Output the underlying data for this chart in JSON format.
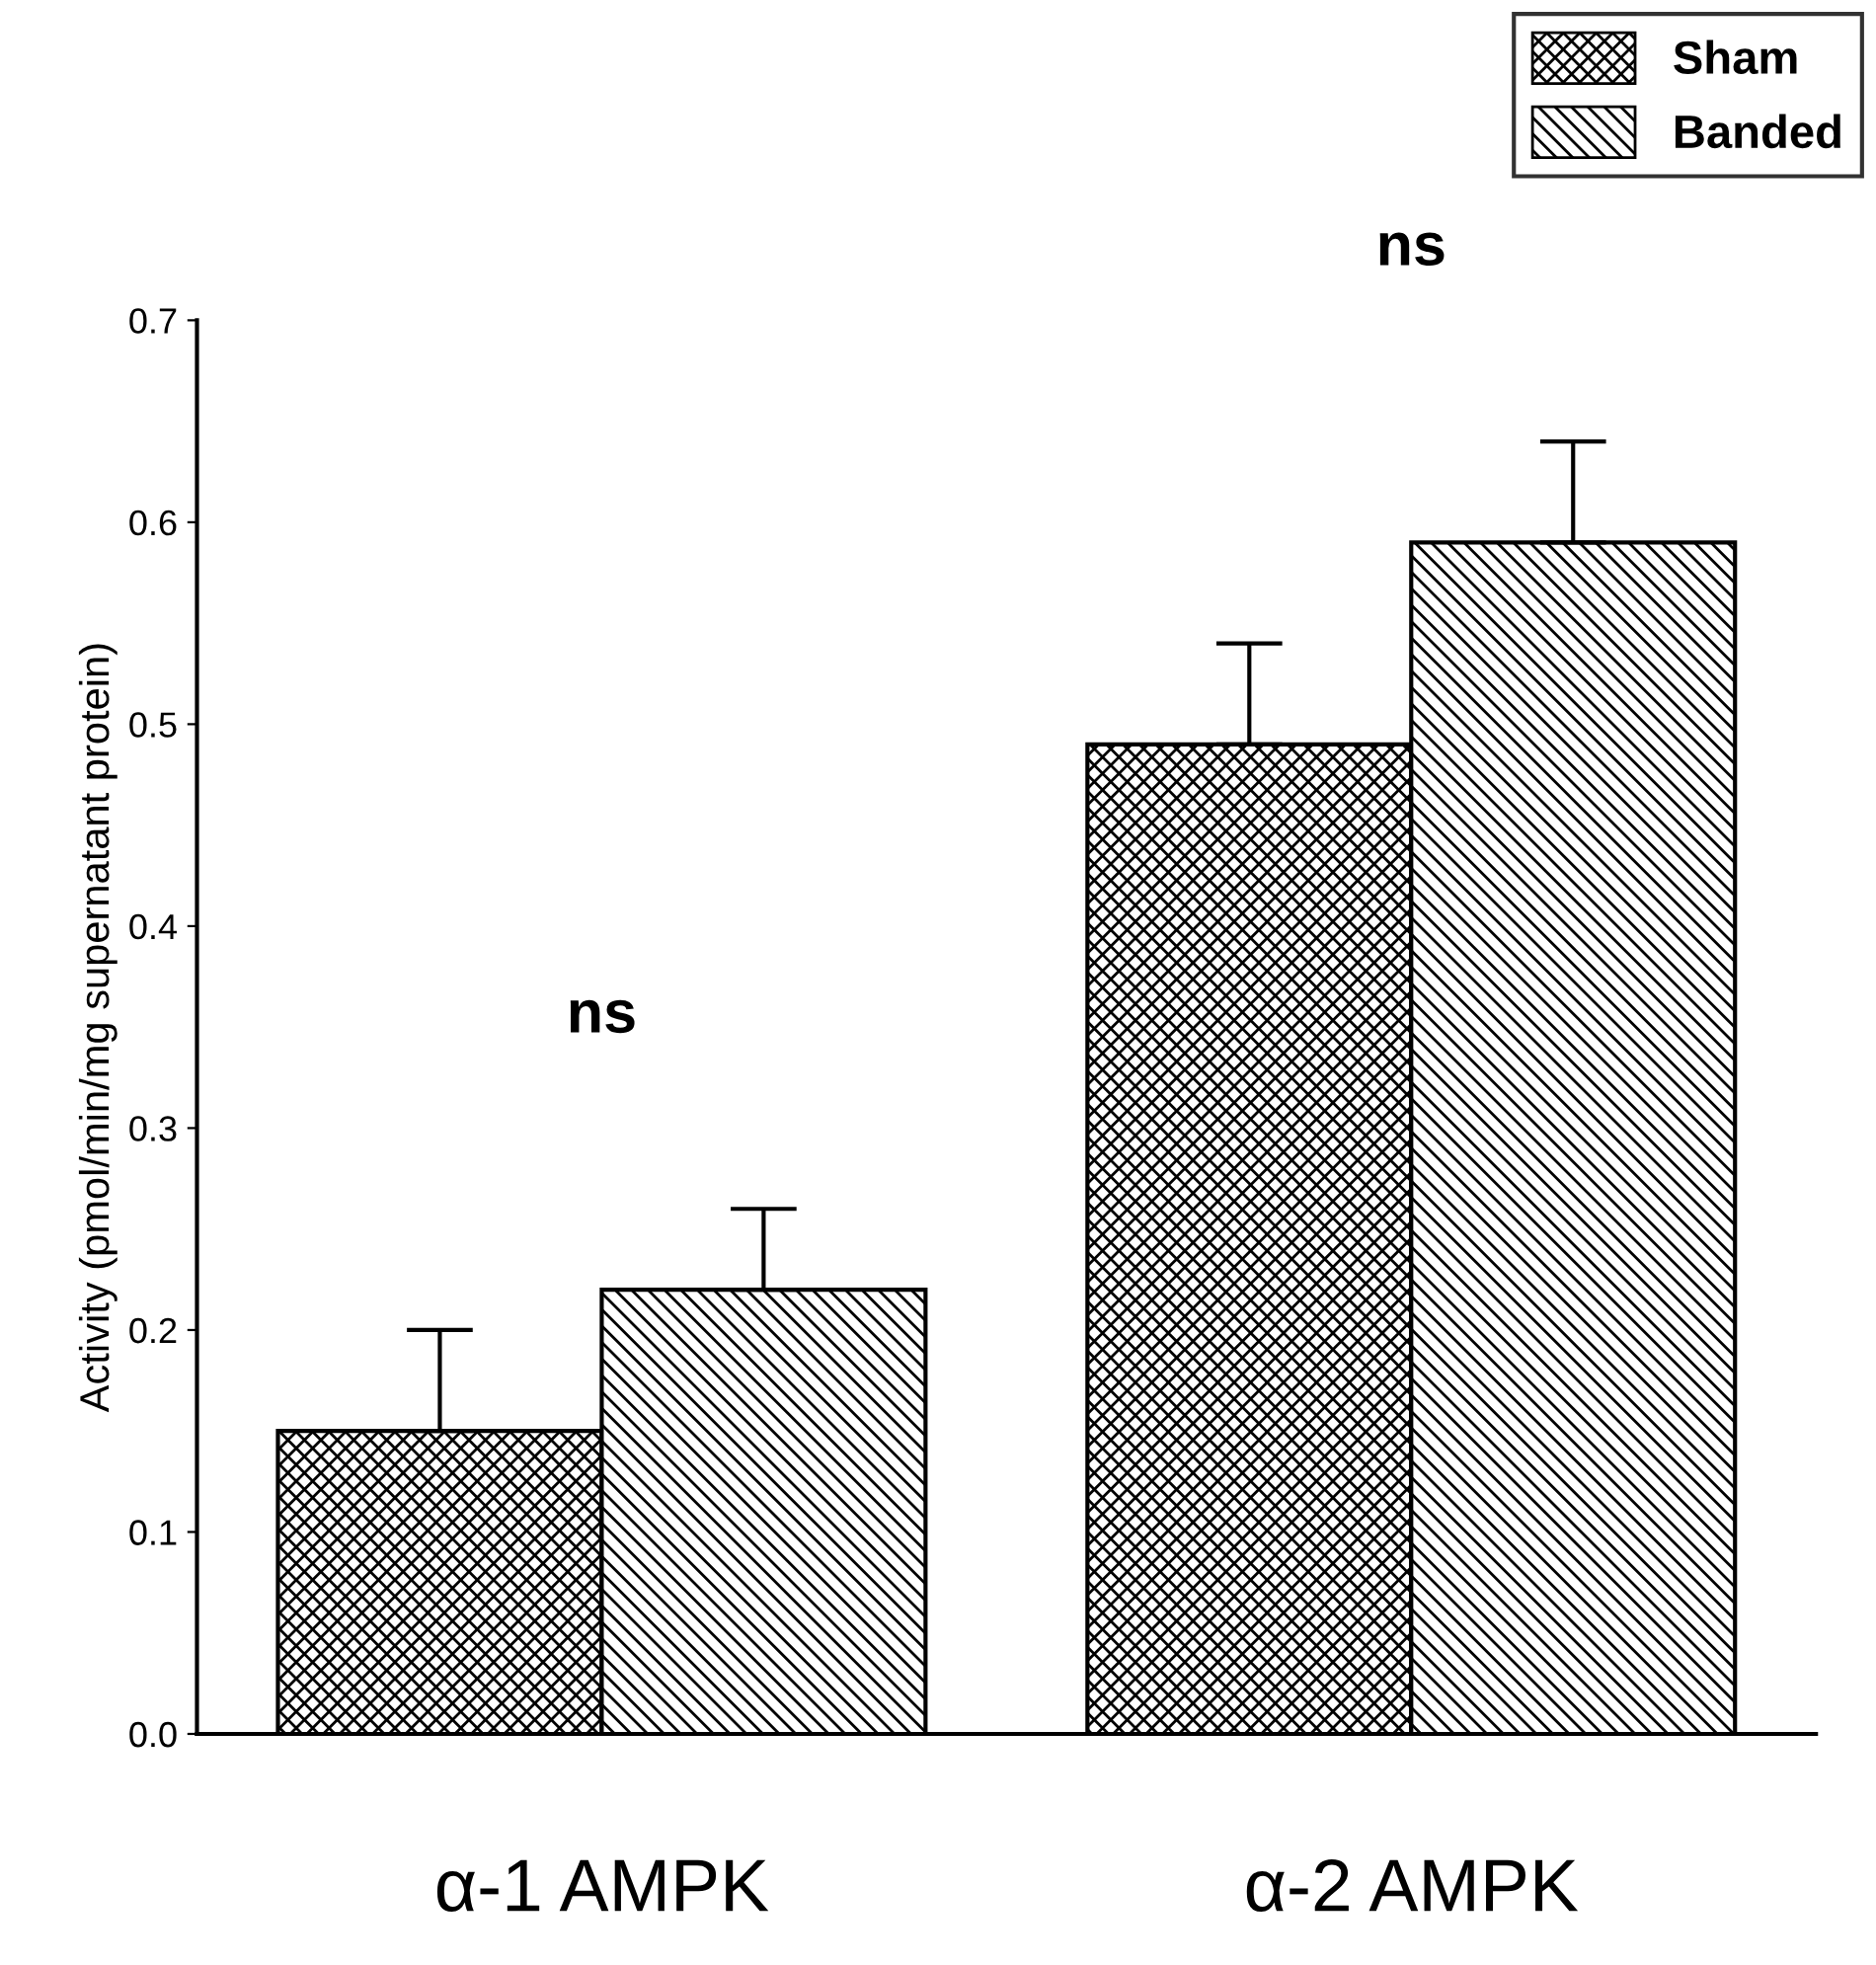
{
  "chart_data": {
    "type": "bar",
    "categories": [
      "α-1 AMPK",
      "α-2 AMPK"
    ],
    "ylabel": "Activity (pmol/min/mg supernatant protein)",
    "series": [
      {
        "name": "Sham",
        "color": "#000000",
        "values": [
          0.15,
          0.49
        ],
        "errors": [
          [
            0.15,
            0.2
          ],
          [
            0.49,
            0.54
          ]
        ]
      },
      {
        "name": "Banded",
        "color": "#000000",
        "values": [
          0.22,
          0.59
        ],
        "errors": [
          [
            0.22,
            0.26
          ],
          [
            0.59,
            0.64
          ]
        ]
      }
    ],
    "ylim": [
      0,
      0.7
    ],
    "yticks": [
      {
        "value": 0,
        "label": "0.0"
      },
      0.1,
      0.2,
      0.3,
      0.4,
      0.5,
      0.6,
      0.7
    ],
    "annotations": [
      "ns",
      "ns"
    ],
    "legend": "top right",
    "grid": false
  }
}
